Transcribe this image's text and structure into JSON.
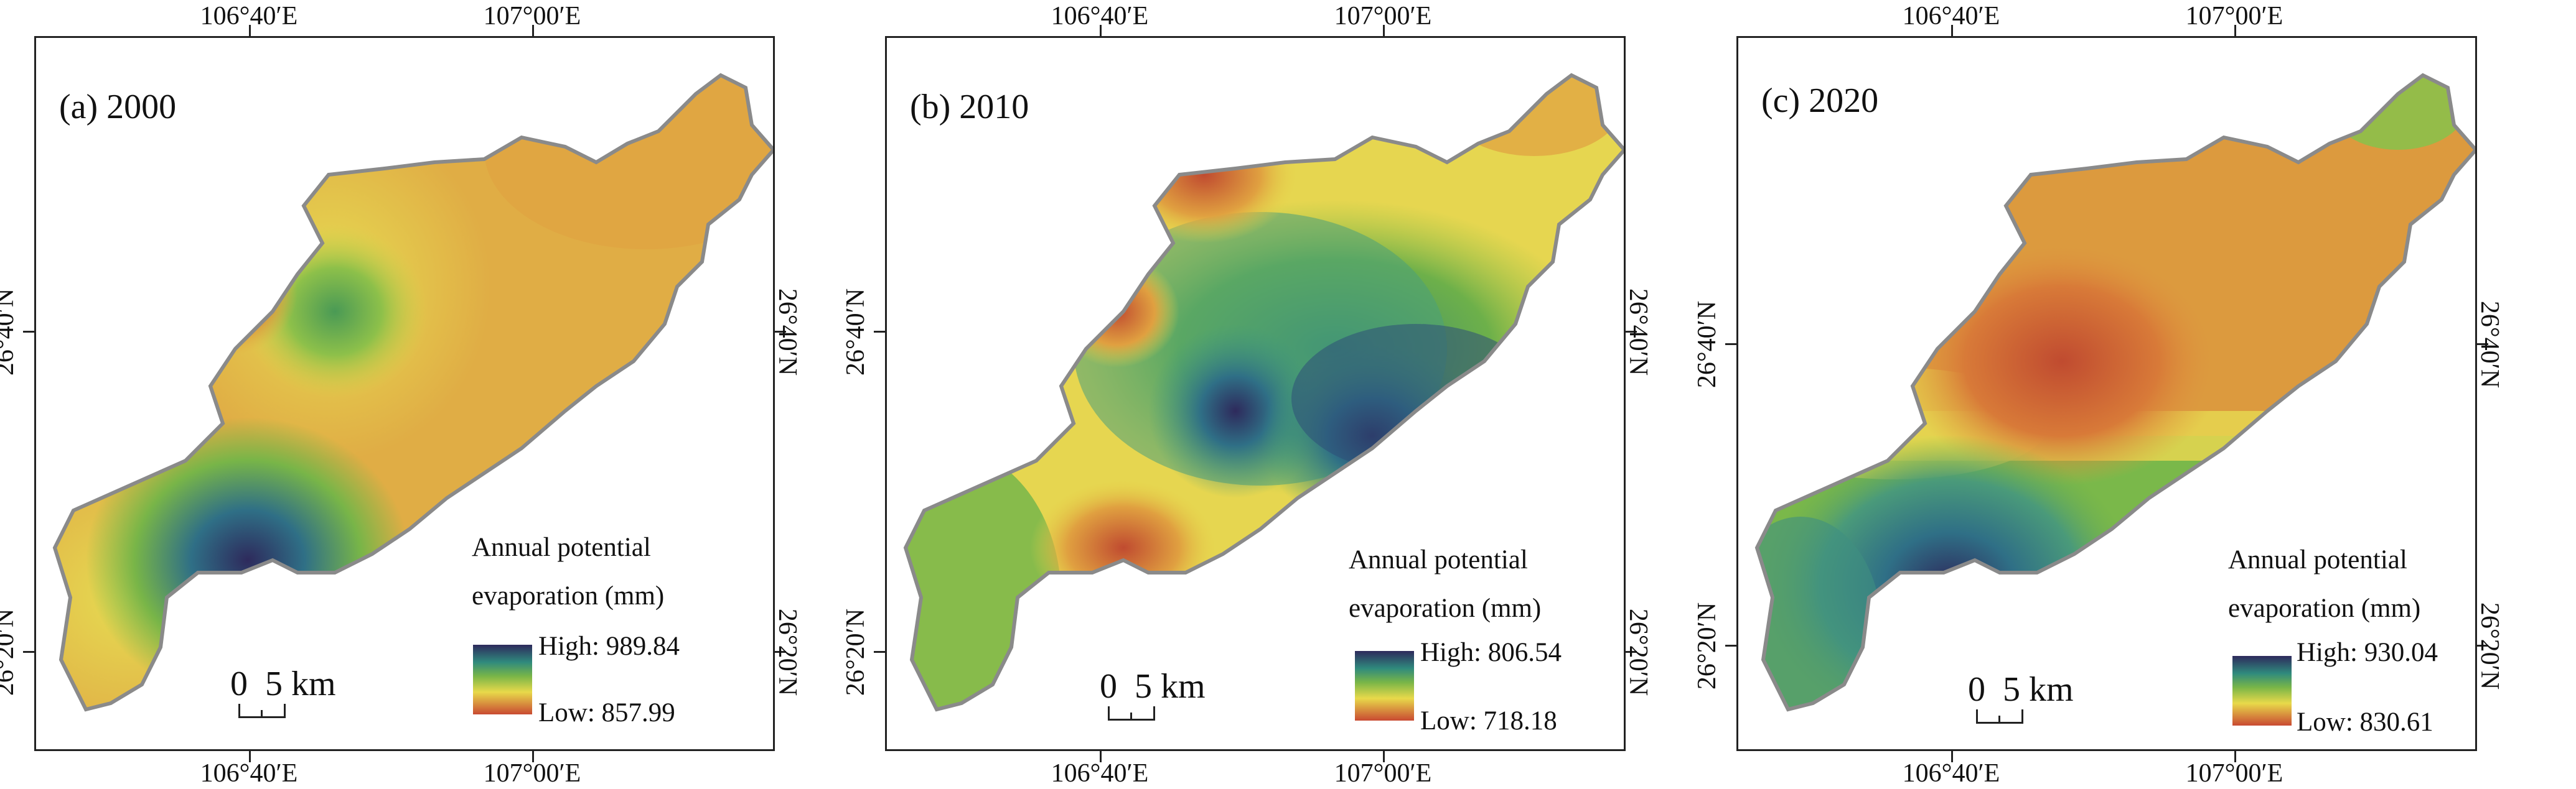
{
  "panels": [
    {
      "label": "(a) 2000",
      "legend_title_line1": "Annual potential",
      "legend_title_line2": "evaporation (mm)",
      "high": "High: 989.84",
      "low": "Low: 857.99",
      "scale": "0  5 km",
      "lon_labels": [
        "106°40′E",
        "107°00′E"
      ],
      "lat_labels": [
        "26°40′N",
        "26°20′N"
      ]
    },
    {
      "label": "(b) 2010",
      "legend_title_line1": "Annual potential",
      "legend_title_line2": "evaporation (mm)",
      "high": "High: 806.54",
      "low": "Low: 718.18",
      "scale": "0  5 km",
      "lon_labels": [
        "106°40′E",
        "107°00′E"
      ],
      "lat_labels": [
        "26°40′N",
        "26°20′N"
      ]
    },
    {
      "label": "(c) 2020",
      "legend_title_line1": "Annual potential",
      "legend_title_line2": "evaporation (mm)",
      "high": "High: 930.04",
      "low": "Low: 830.61",
      "scale": "0  5 km",
      "lon_labels": [
        "106°40′E",
        "107°00′E"
      ],
      "lat_labels": [
        "26°40′N",
        "26°20′N"
      ]
    }
  ],
  "colors": {
    "high": "#2e2a5c",
    "mid_high": "#2f8a7d",
    "mid": "#78b548",
    "mid_low": "#e8d94a",
    "low": "#c94a32",
    "boundary": "#8a8a8a",
    "frame": "#222222"
  }
}
